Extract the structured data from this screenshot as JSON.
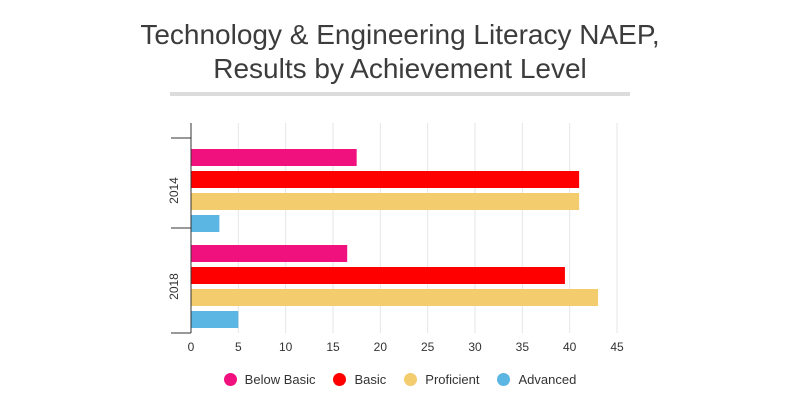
{
  "chart_data": {
    "type": "bar",
    "orientation": "horizontal",
    "title": "Technology & Engineering Literacy NAEP, Results by Achievement Level",
    "title_lines": [
      "Technology & Engineering Literacy NAEP,",
      "Results by Achievement Level"
    ],
    "categories": [
      "2014",
      "2018"
    ],
    "series": [
      {
        "name": "Below Basic",
        "color": "#f0117f",
        "values": [
          17.5,
          16.5
        ]
      },
      {
        "name": "Basic",
        "color": "#ff0000",
        "values": [
          41,
          39.5
        ]
      },
      {
        "name": "Proficient",
        "color": "#f3cc6e",
        "values": [
          41,
          43
        ]
      },
      {
        "name": "Advanced",
        "color": "#5bb6e4",
        "values": [
          3,
          5
        ]
      }
    ],
    "xlim": [
      0,
      45
    ],
    "xticks": [
      "0",
      "5",
      "10",
      "15",
      "20",
      "25",
      "30",
      "35",
      "40",
      "45"
    ],
    "xlabel": "",
    "ylabel": "",
    "grid": true,
    "legend_position": "bottom"
  }
}
